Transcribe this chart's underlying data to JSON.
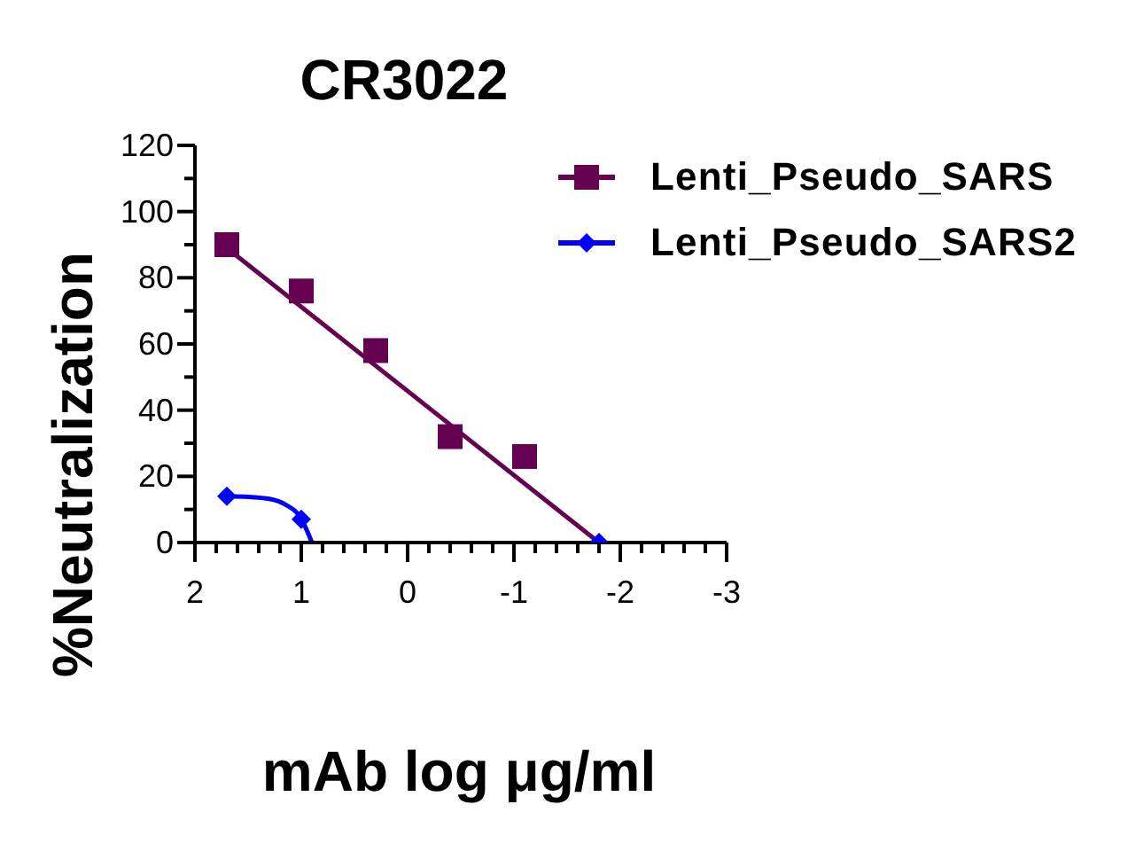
{
  "chart_data": {
    "type": "scatter",
    "title": "CR3022",
    "xlabel": "mAb log μg/ml",
    "ylabel": "%Neutralization",
    "xlim": [
      2,
      -3
    ],
    "xticks": [
      2,
      {
        "value": 1.8,
        "label": null
      },
      {
        "value": 1.6,
        "label": null
      },
      {
        "value": 1.4,
        "label": null
      },
      {
        "value": 1.2,
        "label": null
      },
      1,
      {
        "value": 0.8,
        "label": null
      },
      {
        "value": 0.6,
        "label": null
      },
      {
        "value": 0.4,
        "label": null
      },
      {
        "value": 0.2,
        "label": null
      },
      0,
      {
        "value": -0.2,
        "label": null
      },
      {
        "value": -0.4,
        "label": null
      },
      {
        "value": -0.6,
        "label": null
      },
      {
        "value": -0.8,
        "label": null
      },
      -1,
      {
        "value": -1.2,
        "label": null
      },
      {
        "value": -1.4,
        "label": null
      },
      {
        "value": -1.6,
        "label": null
      },
      {
        "value": -1.8,
        "label": null
      },
      -2,
      {
        "value": -2.2,
        "label": null
      },
      {
        "value": -2.4,
        "label": null
      },
      {
        "value": -2.6,
        "label": null
      },
      {
        "value": -2.8,
        "label": null
      },
      -3
    ],
    "ylim": [
      0,
      120
    ],
    "yticks": [
      0,
      {
        "value": 10,
        "label": null
      },
      20,
      {
        "value": 30,
        "label": null
      },
      40,
      {
        "value": 50,
        "label": null
      },
      60,
      {
        "value": 70,
        "label": null
      },
      80,
      {
        "value": 90,
        "label": null
      },
      100,
      {
        "value": 110,
        "label": null
      },
      120
    ],
    "legend": "top right",
    "series": [
      {
        "name": "Lenti_Pseudo_SARS",
        "marker": "square",
        "color": "#660050",
        "x": [
          1.7,
          1.0,
          0.3,
          -0.4,
          -1.1
        ],
        "values": [
          90,
          76,
          58,
          32,
          26
        ]
      },
      {
        "type": "line",
        "marker": "none",
        "color": "#660050",
        "x": [
          1.7,
          -1.8
        ],
        "values": [
          89,
          0
        ]
      },
      {
        "name": "Lenti_Pseudo_SARS2",
        "marker": "diamond",
        "color": "#0000ff",
        "x": [
          1.7,
          1.0,
          -1.8
        ],
        "values": [
          14,
          7,
          0
        ]
      },
      {
        "type": "line",
        "marker": "none",
        "color": "#0000ff",
        "x": [
          1.7,
          1.5,
          1.3,
          1.15,
          1.0,
          0.9
        ],
        "values": [
          14,
          13.8,
          13.2,
          11.5,
          7.2,
          0
        ]
      }
    ]
  }
}
